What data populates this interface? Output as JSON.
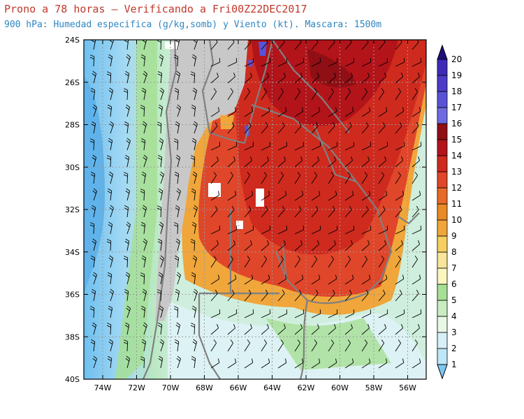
{
  "title": "Prono a 78 horas — Verificando a Fri00Z22DEC2017",
  "subtitle": "900 hPa: Humedad especifica (g/kg,somb) y Viento (kt). Mascara: 1500m",
  "lat_labels": [
    "24S",
    "26S",
    "28S",
    "30S",
    "32S",
    "34S",
    "36S",
    "38S",
    "40S"
  ],
  "lon_labels": [
    "74W",
    "72W",
    "70W",
    "68W",
    "66W",
    "64W",
    "62W",
    "60W",
    "58W",
    "56W"
  ],
  "colorbar": {
    "levels": [
      "1",
      "2",
      "3",
      "4",
      "5",
      "6",
      "7",
      "8",
      "9",
      "10",
      "11",
      "12",
      "13",
      "14",
      "15",
      "16",
      "17",
      "18",
      "19",
      "20"
    ],
    "colors": [
      "#bfe6f7",
      "#d7f0f8",
      "#e9f7e6",
      "#c9ecc0",
      "#a6df95",
      "#fbf6c0",
      "#f6e59b",
      "#f5d060",
      "#f0a63a",
      "#e98a26",
      "#e76a2a",
      "#e0462a",
      "#cf2a1e",
      "#b2141a",
      "#8f0f14",
      "#6e6be0",
      "#5a52d6",
      "#4d3cc9",
      "#3f2ab8",
      "#2f1a9c"
    ],
    "below_color": "#7cc8f2",
    "above_color": "#1d0f7a"
  },
  "colors": {
    "mask": "#c8c8c8",
    "border": "#808080",
    "barb": "#000000",
    "grid": "#9a9a9a"
  }
}
